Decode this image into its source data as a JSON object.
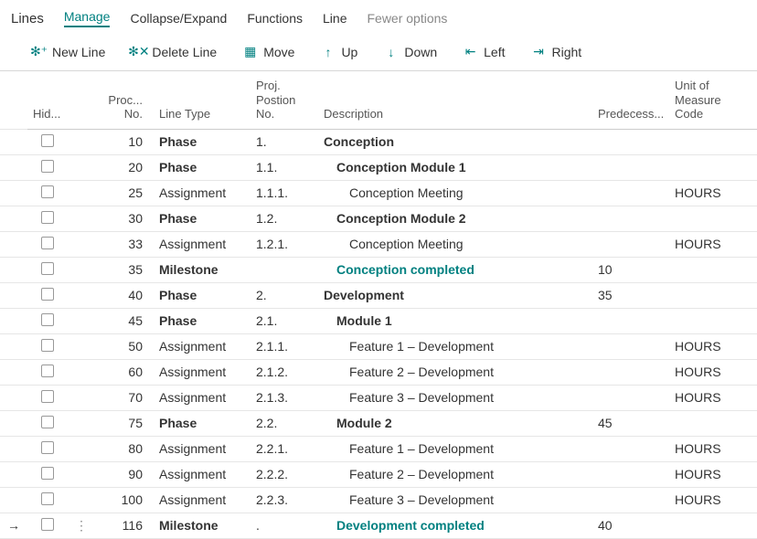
{
  "colors": {
    "accent": "#008080",
    "border": "#d7d7d7",
    "rowBorder": "#e6e6e6"
  },
  "toolbar": {
    "title": "Lines",
    "tabs": {
      "manage": "Manage",
      "collapse": "Collapse/Expand",
      "functions": "Functions",
      "line": "Line"
    },
    "fewer": "Fewer options",
    "actions": {
      "newline": {
        "label": "New Line",
        "glyph": "✻⁺"
      },
      "deleteline": {
        "label": "Delete Line",
        "glyph": "✻✕"
      },
      "move": {
        "label": "Move",
        "glyph": "▦"
      },
      "up": {
        "label": "Up",
        "glyph": "↑"
      },
      "down": {
        "label": "Down",
        "glyph": "↓"
      },
      "left": {
        "label": "Left",
        "glyph": "⇤"
      },
      "right": {
        "label": "Right",
        "glyph": "⇥"
      }
    }
  },
  "headers": {
    "hid": "Hid...",
    "procno": "Proc... No.",
    "linetype": "Line Type",
    "projpos": "Proj. Postion No.",
    "desc": "Description",
    "pred": "Predecess...",
    "uom": "Unit of Measure Code"
  },
  "rows": [
    {
      "procno": "10",
      "linetype": "Phase",
      "ltBold": true,
      "pos": "1.",
      "desc": "Conception",
      "dBold": true,
      "indent": 0,
      "pred": "",
      "uom": ""
    },
    {
      "procno": "20",
      "linetype": "Phase",
      "ltBold": true,
      "pos": "1.1.",
      "desc": "Conception Module 1",
      "dBold": true,
      "indent": 1,
      "pred": "",
      "uom": ""
    },
    {
      "procno": "25",
      "linetype": "Assignment",
      "ltBold": false,
      "pos": "1.1.1.",
      "desc": "Conception Meeting",
      "dBold": false,
      "indent": 2,
      "pred": "",
      "uom": "HOURS"
    },
    {
      "procno": "30",
      "linetype": "Phase",
      "ltBold": true,
      "pos": "1.2.",
      "desc": "Conception Module 2",
      "dBold": true,
      "indent": 1,
      "pred": "",
      "uom": ""
    },
    {
      "procno": "33",
      "linetype": "Assignment",
      "ltBold": false,
      "pos": "1.2.1.",
      "desc": "Conception Meeting",
      "dBold": false,
      "indent": 2,
      "pred": "",
      "uom": "HOURS"
    },
    {
      "procno": "35",
      "linetype": "Milestone",
      "ltBold": false,
      "pos": "",
      "desc": "Conception completed",
      "dBold": false,
      "indent": 1,
      "pred": "10",
      "uom": "",
      "milestone": true
    },
    {
      "procno": "40",
      "linetype": "Phase",
      "ltBold": true,
      "pos": "2.",
      "desc": "Development",
      "dBold": true,
      "indent": 0,
      "pred": "35",
      "uom": ""
    },
    {
      "procno": "45",
      "linetype": "Phase",
      "ltBold": true,
      "pos": "2.1.",
      "desc": "Module 1",
      "dBold": true,
      "indent": 1,
      "pred": "",
      "uom": ""
    },
    {
      "procno": "50",
      "linetype": "Assignment",
      "ltBold": false,
      "pos": "2.1.1.",
      "desc": "Feature 1 – Development",
      "dBold": false,
      "indent": 2,
      "pred": "",
      "uom": "HOURS"
    },
    {
      "procno": "60",
      "linetype": "Assignment",
      "ltBold": false,
      "pos": "2.1.2.",
      "desc": "Feature 2 – Development",
      "dBold": false,
      "indent": 2,
      "pred": "",
      "uom": "HOURS"
    },
    {
      "procno": "70",
      "linetype": "Assignment",
      "ltBold": false,
      "pos": "2.1.3.",
      "desc": "Feature 3 – Development",
      "dBold": false,
      "indent": 2,
      "pred": "",
      "uom": "HOURS"
    },
    {
      "procno": "75",
      "linetype": "Phase",
      "ltBold": true,
      "pos": "2.2.",
      "desc": "Module 2",
      "dBold": true,
      "indent": 1,
      "pred": "45",
      "uom": ""
    },
    {
      "procno": "80",
      "linetype": "Assignment",
      "ltBold": false,
      "pos": "2.2.1.",
      "desc": "Feature 1 – Development",
      "dBold": false,
      "indent": 2,
      "pred": "",
      "uom": "HOURS"
    },
    {
      "procno": "90",
      "linetype": "Assignment",
      "ltBold": false,
      "pos": "2.2.2.",
      "desc": "Feature 2 – Development",
      "dBold": false,
      "indent": 2,
      "pred": "",
      "uom": "HOURS"
    },
    {
      "procno": "100",
      "linetype": "Assignment",
      "ltBold": false,
      "pos": "2.2.3.",
      "desc": "Feature 3 – Development",
      "dBold": false,
      "indent": 2,
      "pred": "",
      "uom": "HOURS"
    },
    {
      "procno": "116",
      "linetype": "Milestone",
      "ltBold": false,
      "pos": ".",
      "desc": "Development completed",
      "dBold": false,
      "indent": 1,
      "pred": "40",
      "uom": "",
      "milestone": true,
      "selected": true
    }
  ]
}
